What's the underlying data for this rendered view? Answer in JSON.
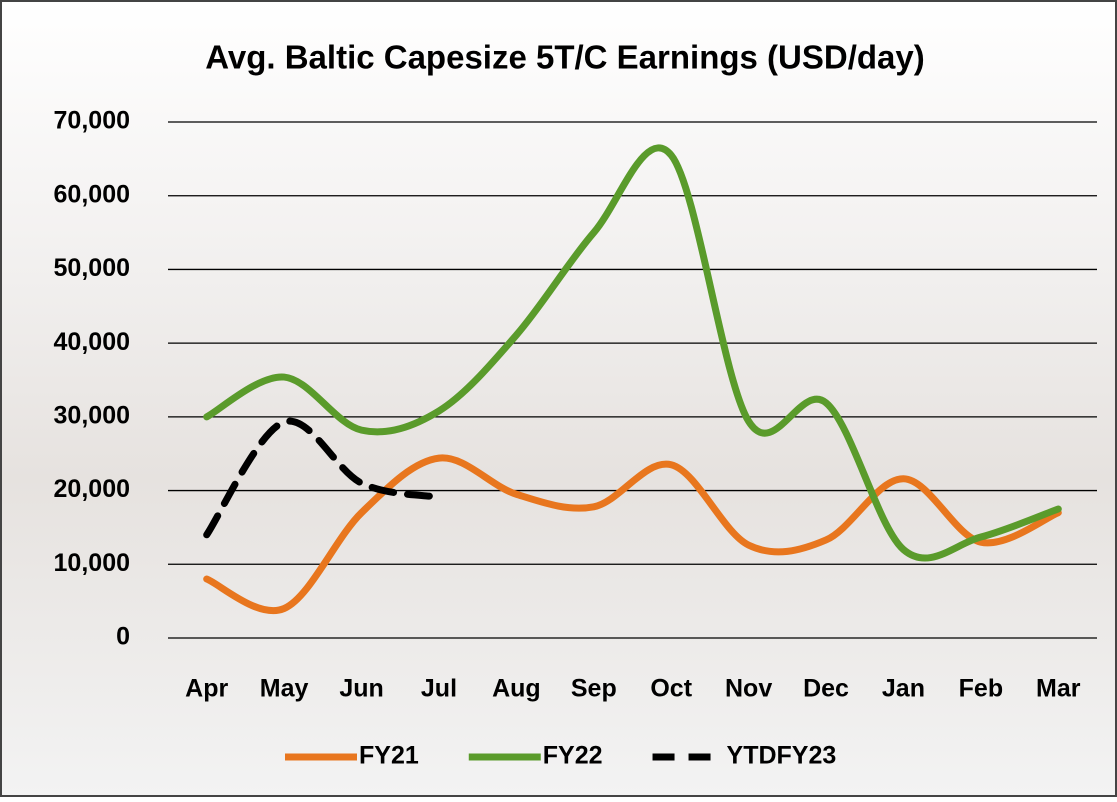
{
  "chart_data": {
    "type": "line",
    "title": "Avg. Baltic Capesize 5T/C Earnings (USD/day)",
    "categories": [
      "Apr",
      "May",
      "Jun",
      "Jul",
      "Aug",
      "Sep",
      "Oct",
      "Nov",
      "Dec",
      "Jan",
      "Feb",
      "Mar"
    ],
    "series": [
      {
        "name": "FY21",
        "color": "#e8761e",
        "values": [
          8000,
          4000,
          17000,
          24400,
          19500,
          17800,
          23500,
          12600,
          13300,
          21600,
          13000,
          17000
        ]
      },
      {
        "name": "FY22",
        "color": "#5a9b2b",
        "values": [
          30000,
          35400,
          28200,
          30800,
          41100,
          55000,
          65500,
          29400,
          31900,
          12000,
          13700,
          17500
        ]
      },
      {
        "name": "YTDFY23",
        "color": "#000000",
        "dashed": true,
        "values": [
          14000,
          29300,
          21000,
          19100,
          null,
          null,
          null,
          null,
          null,
          null,
          null,
          null
        ]
      }
    ],
    "ylim": [
      0,
      70000
    ],
    "yticks": [
      0,
      {
        "value": 10000,
        "label": "10,000"
      },
      {
        "value": 20000,
        "label": "20,000"
      },
      {
        "value": 30000,
        "label": "30,000"
      },
      {
        "value": 40000,
        "label": "40,000"
      },
      {
        "value": 50000,
        "label": "50,000"
      },
      {
        "value": 60000,
        "label": "60,000"
      },
      {
        "value": 70000,
        "label": "70,000"
      }
    ],
    "grid": true,
    "legend": "bottom"
  }
}
